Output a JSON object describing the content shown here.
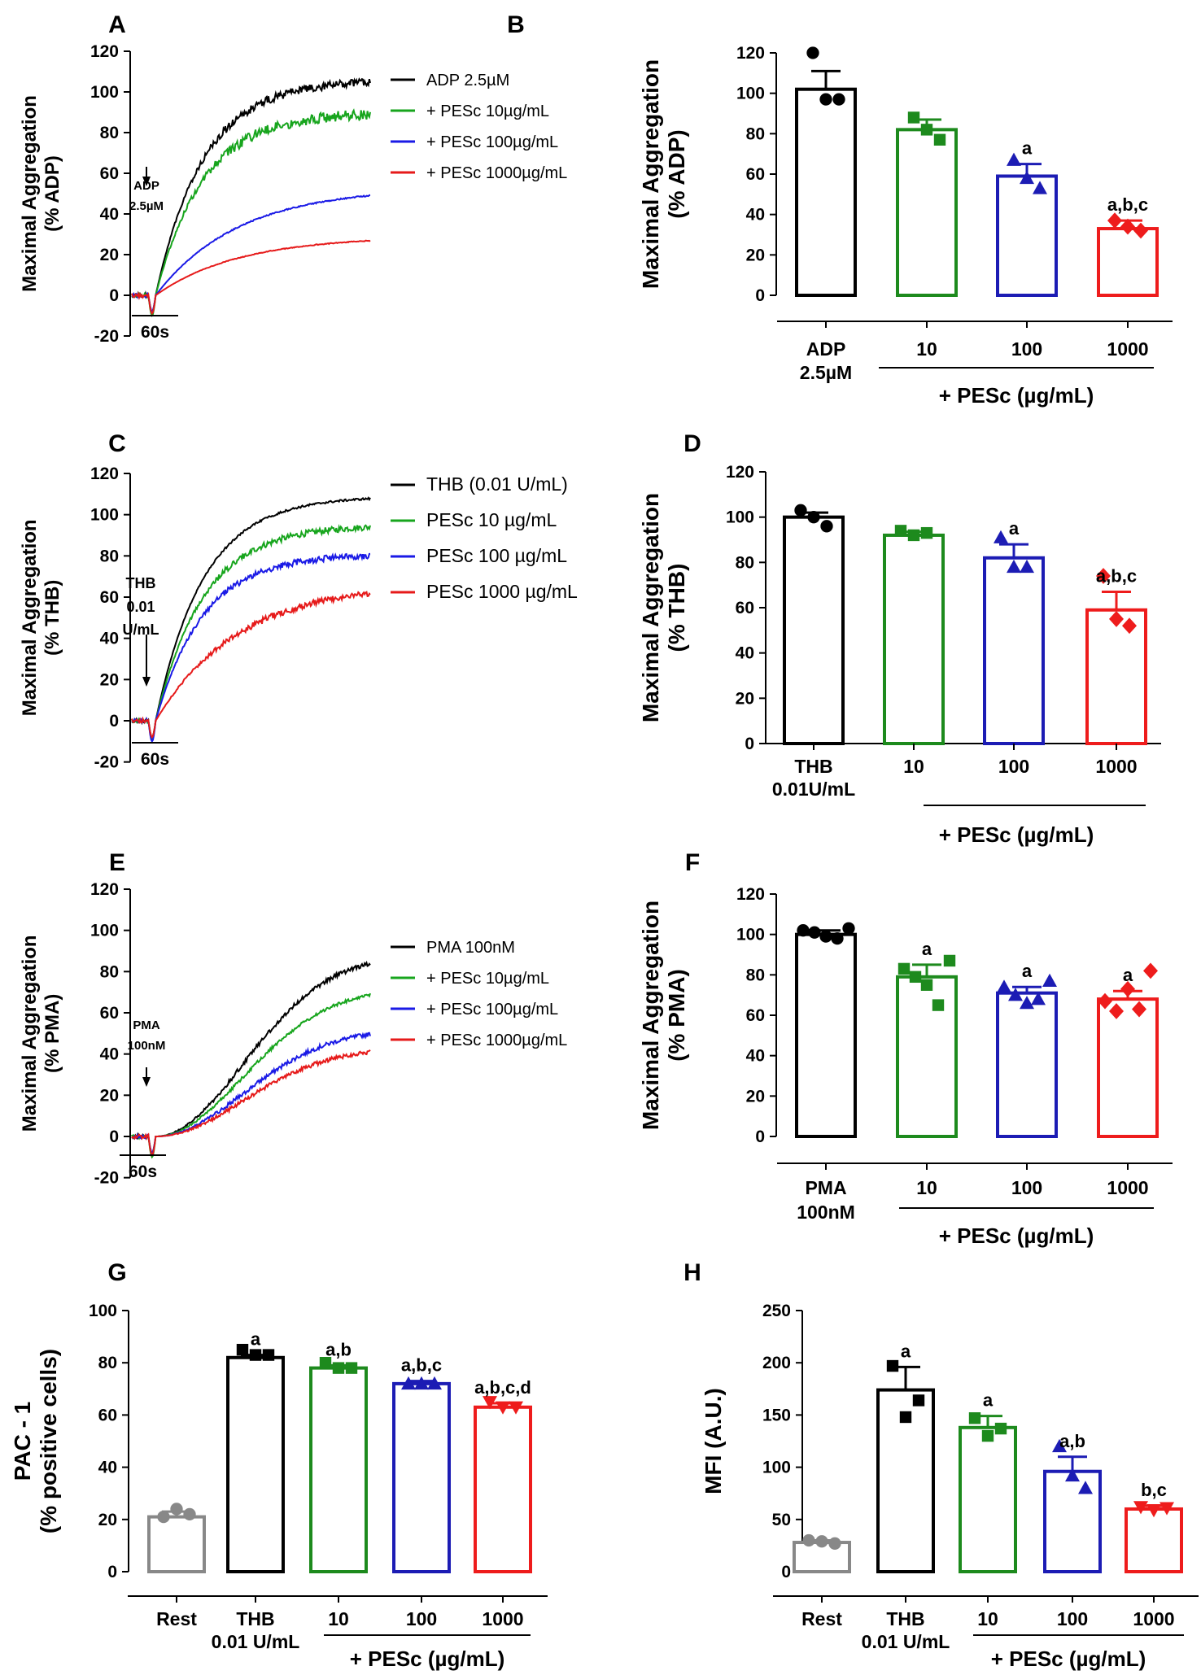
{
  "figure": {
    "panels": [
      "A",
      "B",
      "C",
      "D",
      "E",
      "F",
      "G",
      "H"
    ]
  },
  "colors": {
    "black": "#000000",
    "green": "#17a51d",
    "blue": "#1a1ae6",
    "red": "#e61a1a",
    "bar_green": "#1d8a1d",
    "bar_blue": "#1c1cb4",
    "bar_red": "#ee1c1c",
    "gray": "#888888"
  },
  "chart_data": [
    {
      "panel": "A",
      "type": "line",
      "ylabel": "Maximal Aggregation\n(% ADP)",
      "ylim": [
        -20,
        120
      ],
      "yticks": [
        -20,
        0,
        20,
        40,
        60,
        80,
        100,
        120
      ],
      "time_scale": "60s",
      "arrow_label": "ADP\n2.5µM",
      "series": [
        {
          "name": "ADP 2.5µM",
          "color": "black",
          "plateau": 106,
          "noise": 4
        },
        {
          "name": "+ PESc 10µg/mL",
          "color": "green",
          "plateau": 90,
          "noise": 5
        },
        {
          "name": "+ PESc 100µg/mL",
          "color": "blue",
          "plateau": 53,
          "noise": 0.6
        },
        {
          "name": "+ PESc 1000µg/mL",
          "color": "red",
          "plateau": 29,
          "noise": 0.4
        }
      ]
    },
    {
      "panel": "B",
      "type": "bar",
      "ylabel": "Maximal Aggregation\n(% ADP)",
      "ylim": [
        0,
        120
      ],
      "yticks": [
        0,
        20,
        40,
        60,
        80,
        100,
        120
      ],
      "categories": [
        "ADP\n2.5µM",
        "10",
        "100",
        "1000"
      ],
      "group_label": "+ PESc (µg/mL)",
      "values": [
        102,
        82,
        59,
        33
      ],
      "errors": [
        9,
        5,
        6,
        4
      ],
      "points": [
        [
          120,
          97,
          97
        ],
        [
          88,
          82,
          77
        ],
        [
          67,
          58,
          53
        ],
        [
          37,
          34,
          32
        ]
      ],
      "markers": [
        "circle",
        "square",
        "triangle",
        "diamond"
      ],
      "colors": [
        "black",
        "bar_green",
        "bar_blue",
        "bar_red"
      ],
      "significance": [
        "",
        "",
        "a",
        "a,b,c"
      ]
    },
    {
      "panel": "C",
      "type": "line",
      "ylabel": "Maximal Aggregation\n(% THB)",
      "ylim": [
        -20,
        120
      ],
      "yticks": [
        -20,
        0,
        20,
        40,
        60,
        80,
        100,
        120
      ],
      "time_scale": "60s",
      "arrow_label": "THB\n0.01\nU/mL",
      "series": [
        {
          "name": "THB (0.01 U/mL)",
          "color": "black",
          "plateau": 109,
          "noise": 1
        },
        {
          "name": "PESc 10 µg/mL",
          "color": "green",
          "plateau": 95,
          "noise": 3
        },
        {
          "name": "PESc 100 µg/mL",
          "color": "blue",
          "plateau": 81,
          "noise": 3
        },
        {
          "name": "PESc 1000 µg/mL",
          "color": "red",
          "plateau": 67,
          "noise": 3
        }
      ]
    },
    {
      "panel": "D",
      "type": "bar",
      "ylabel": "Maximal Aggregation\n(% THB)",
      "ylim": [
        0,
        120
      ],
      "yticks": [
        0,
        20,
        40,
        60,
        80,
        100,
        120
      ],
      "categories": [
        "THB\n0.01U/mL",
        "10",
        "100",
        "1000"
      ],
      "group_label": "+ PESc (µg/mL)",
      "values": [
        100,
        92,
        82,
        59
      ],
      "errors": [
        2,
        1.5,
        6,
        8
      ],
      "points": [
        [
          103,
          100,
          96
        ],
        [
          94,
          92,
          93
        ],
        [
          91,
          78,
          78
        ],
        [
          74,
          55,
          52
        ]
      ],
      "markers": [
        "circle",
        "square",
        "triangle",
        "diamond"
      ],
      "colors": [
        "black",
        "bar_green",
        "bar_blue",
        "bar_red"
      ],
      "significance": [
        "",
        "",
        "a",
        "a,b,c"
      ]
    },
    {
      "panel": "E",
      "type": "line",
      "ylabel": "Maximal Aggregation\n(% PMA)",
      "ylim": [
        -20,
        120
      ],
      "yticks": [
        -20,
        0,
        20,
        40,
        60,
        80,
        100,
        120
      ],
      "time_scale": "60s",
      "arrow_label": "PMA\n100nM",
      "series": [
        {
          "name": "PMA 100nM",
          "color": "black",
          "plateau": 88,
          "noise": 2
        },
        {
          "name": "+ PESc 10µg/mL",
          "color": "green",
          "plateau": 72,
          "noise": 1.5
        },
        {
          "name": "+ PESc 100µg/mL",
          "color": "blue",
          "plateau": 52,
          "noise": 2
        },
        {
          "name": "+ PESc 1000µg/mL",
          "color": "red",
          "plateau": 43,
          "noise": 2
        }
      ]
    },
    {
      "panel": "F",
      "type": "bar",
      "ylabel": "Maximal Aggregation\n(% PMA)",
      "ylim": [
        0,
        120
      ],
      "yticks": [
        0,
        20,
        40,
        60,
        80,
        100,
        120
      ],
      "categories": [
        "PMA\n100nM",
        "10",
        "100",
        "1000"
      ],
      "group_label": "+ PESc (µg/mL)",
      "values": [
        100,
        79,
        71,
        68
      ],
      "errors": [
        2,
        6,
        3,
        4
      ],
      "points": [
        [
          102,
          101,
          99,
          98,
          103
        ],
        [
          83,
          79,
          75,
          65,
          87
        ],
        [
          74,
          70,
          66,
          68,
          77
        ],
        [
          67,
          62,
          73,
          63,
          82
        ]
      ],
      "markers": [
        "circle",
        "square",
        "triangle",
        "diamond"
      ],
      "colors": [
        "black",
        "bar_green",
        "bar_blue",
        "bar_red"
      ],
      "significance": [
        "",
        "a",
        "a",
        "a"
      ]
    },
    {
      "panel": "G",
      "type": "bar",
      "ylabel_line1": "PAC - 1",
      "ylabel_line2": "(% positive cells)",
      "ylim": [
        0,
        100
      ],
      "yticks": [
        0,
        20,
        40,
        60,
        80,
        100
      ],
      "categories": [
        "Rest",
        "THB\n0.01 U/mL",
        "10",
        "100",
        "1000"
      ],
      "group_label": "+ PESc (µg/mL)",
      "values": [
        21,
        82,
        78,
        72,
        63
      ],
      "errors": [
        2,
        1,
        1,
        1,
        1.5
      ],
      "points": [
        [
          21,
          24,
          22
        ],
        [
          85,
          83,
          83
        ],
        [
          80,
          78,
          78
        ],
        [
          72,
          72,
          72
        ],
        [
          65,
          63,
          63
        ]
      ],
      "markers": [
        "circle",
        "square",
        "square",
        "triangle",
        "triangle-down"
      ],
      "colors": [
        "gray",
        "black",
        "bar_green",
        "bar_blue",
        "bar_red"
      ],
      "significance": [
        "",
        "a",
        "a,b",
        "a,b,c",
        "a,b,c,d"
      ]
    },
    {
      "panel": "H",
      "type": "bar",
      "ylabel": "MFI (A.U.)",
      "ylim": [
        0,
        250
      ],
      "yticks": [
        0,
        50,
        100,
        150,
        200,
        250
      ],
      "categories": [
        "Rest",
        "THB\n0.01 U/mL",
        "10",
        "100",
        "1000"
      ],
      "group_label": "+ PESc (µg/mL)",
      "values": [
        28,
        174,
        138,
        96,
        60
      ],
      "errors": [
        2,
        22,
        11,
        14,
        3
      ],
      "points": [
        [
          30,
          29,
          27
        ],
        [
          197,
          148,
          164
        ],
        [
          147,
          130,
          137
        ],
        [
          120,
          92,
          80
        ],
        [
          62,
          59,
          61
        ]
      ],
      "markers": [
        "circle",
        "square",
        "square",
        "triangle",
        "triangle-down"
      ],
      "colors": [
        "gray",
        "black",
        "bar_green",
        "bar_blue",
        "bar_red"
      ],
      "significance": [
        "",
        "a",
        "a",
        "a,b",
        "b,c"
      ]
    }
  ]
}
